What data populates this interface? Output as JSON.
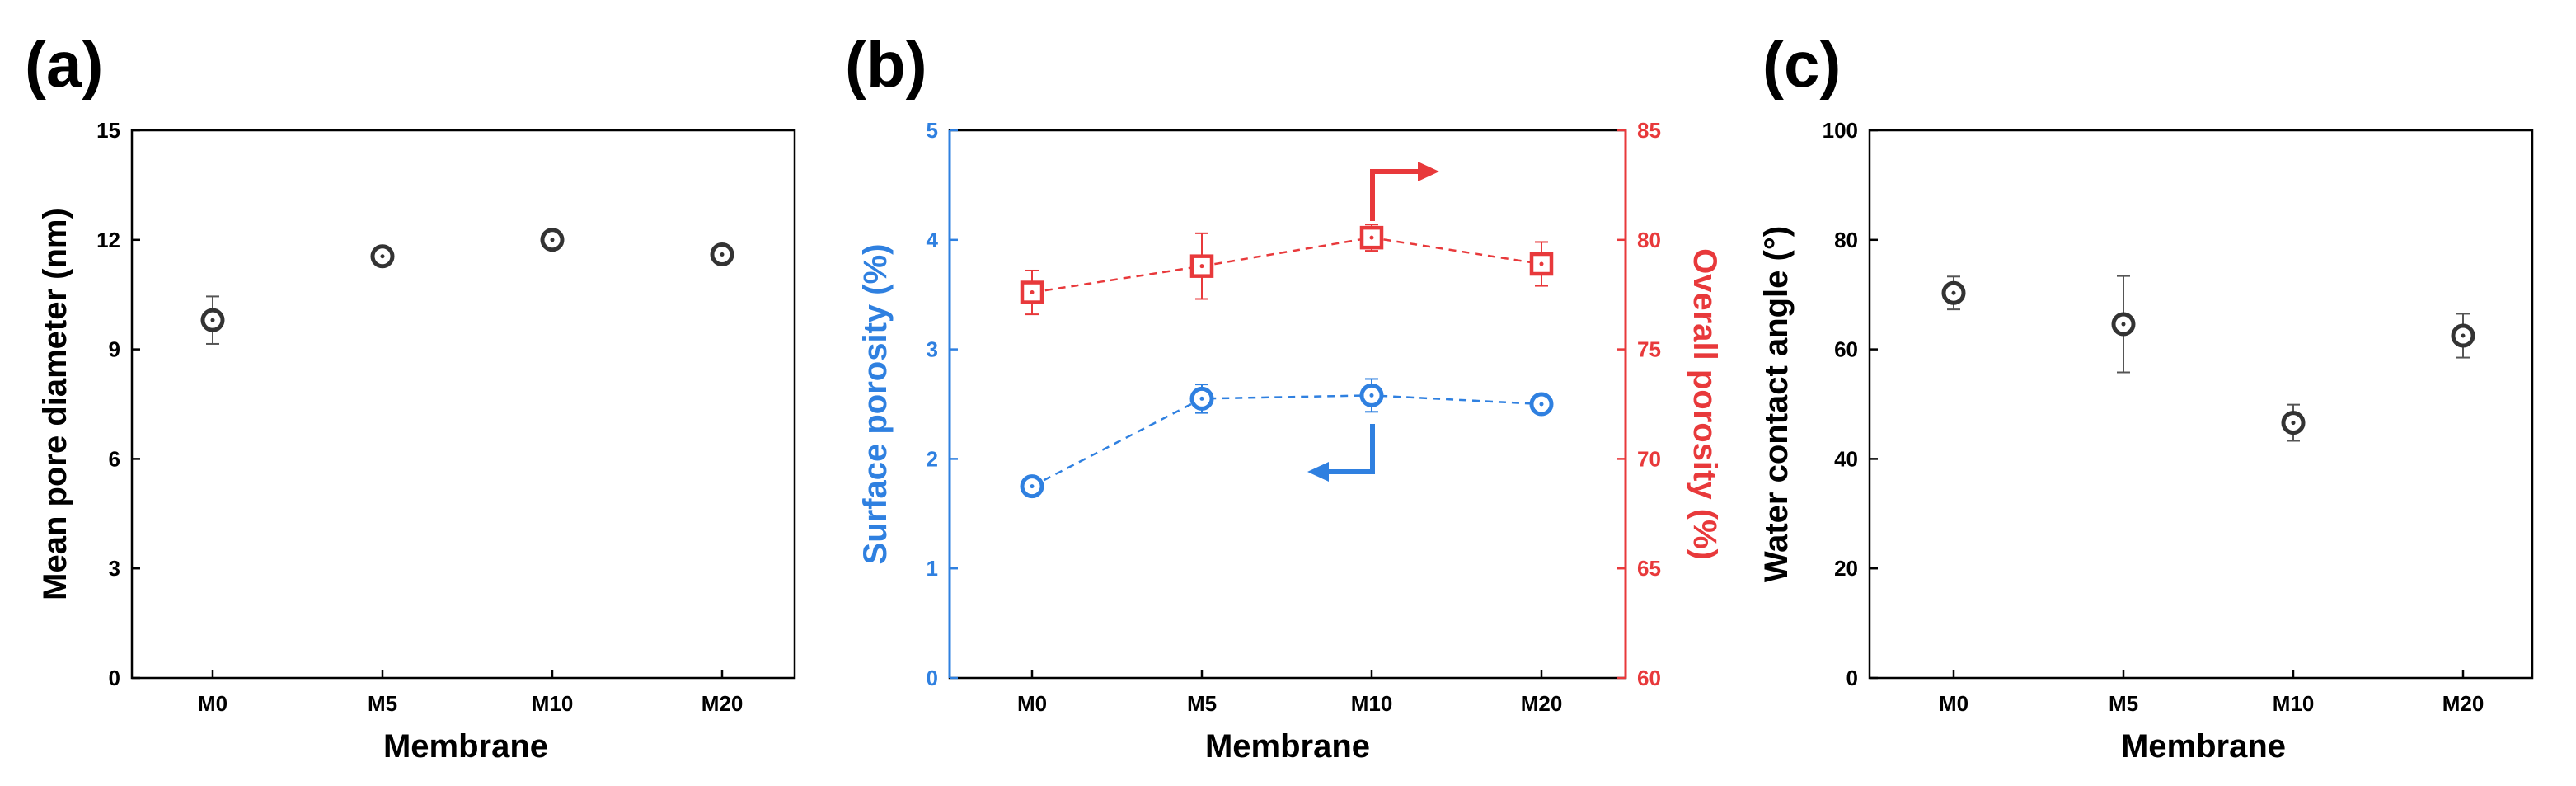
{
  "colors": {
    "black": "#000000",
    "marker_gray": "#333333",
    "errorbar_gray": "#555555",
    "blue": "#2f80e0",
    "red": "#e8393b"
  },
  "chart_data": [
    {
      "panel": "(a)",
      "type": "scatter",
      "xlabel": "Membrane",
      "ylabel": "Mean pore diameter (nm)",
      "categories": [
        "M0",
        "M5",
        "M10",
        "M20"
      ],
      "ylim": [
        0,
        15
      ],
      "yticks": [
        0,
        3,
        6,
        9,
        12,
        15
      ],
      "series": [
        {
          "name": "Mean pore diameter",
          "marker": "circle",
          "color": "#333333",
          "values": [
            9.8,
            11.55,
            12.0,
            11.6
          ],
          "errors": [
            0.65,
            0.15,
            0.25,
            0.25
          ]
        }
      ]
    },
    {
      "panel": "(b)",
      "type": "line",
      "xlabel": "Membrane",
      "ylabel": "Surface porosity (%)",
      "ylabel_right": "Overall porosity (%)",
      "categories": [
        "M0",
        "M5",
        "M10",
        "M20"
      ],
      "ylim": [
        0,
        5
      ],
      "ylim_right": [
        60,
        85
      ],
      "yticks": [
        0,
        1,
        2,
        3,
        4,
        5
      ],
      "yticks_right": [
        60,
        65,
        70,
        75,
        80,
        85
      ],
      "series": [
        {
          "name": "Surface porosity",
          "axis": "left",
          "marker": "circle",
          "color": "#2f80e0",
          "linestyle": "dashed",
          "values": [
            1.75,
            2.55,
            2.58,
            2.5
          ],
          "errors": [
            0.06,
            0.13,
            0.15,
            0.08
          ]
        },
        {
          "name": "Overall porosity",
          "axis": "right",
          "marker": "square",
          "color": "#e8393b",
          "linestyle": "dashed",
          "values": [
            77.6,
            78.8,
            80.1,
            78.9
          ],
          "errors": [
            1.0,
            1.5,
            0.6,
            1.0
          ]
        }
      ],
      "annotations": [
        {
          "type": "arrow",
          "direction": "left",
          "color": "#2f80e0",
          "points_to": "left axis"
        },
        {
          "type": "arrow",
          "direction": "right",
          "color": "#e8393b",
          "points_to": "right axis"
        }
      ]
    },
    {
      "panel": "(c)",
      "type": "scatter",
      "xlabel": "Membrane",
      "ylabel": "Water contact angle (°)",
      "categories": [
        "M0",
        "M5",
        "M10",
        "M20"
      ],
      "ylim": [
        0,
        100
      ],
      "yticks": [
        0,
        20,
        40,
        60,
        80,
        100
      ],
      "series": [
        {
          "name": "Water contact angle",
          "marker": "circle",
          "color": "#333333",
          "values": [
            70.3,
            64.6,
            46.6,
            62.5
          ],
          "errors": [
            3.0,
            8.8,
            3.3,
            4.0
          ]
        }
      ]
    }
  ]
}
